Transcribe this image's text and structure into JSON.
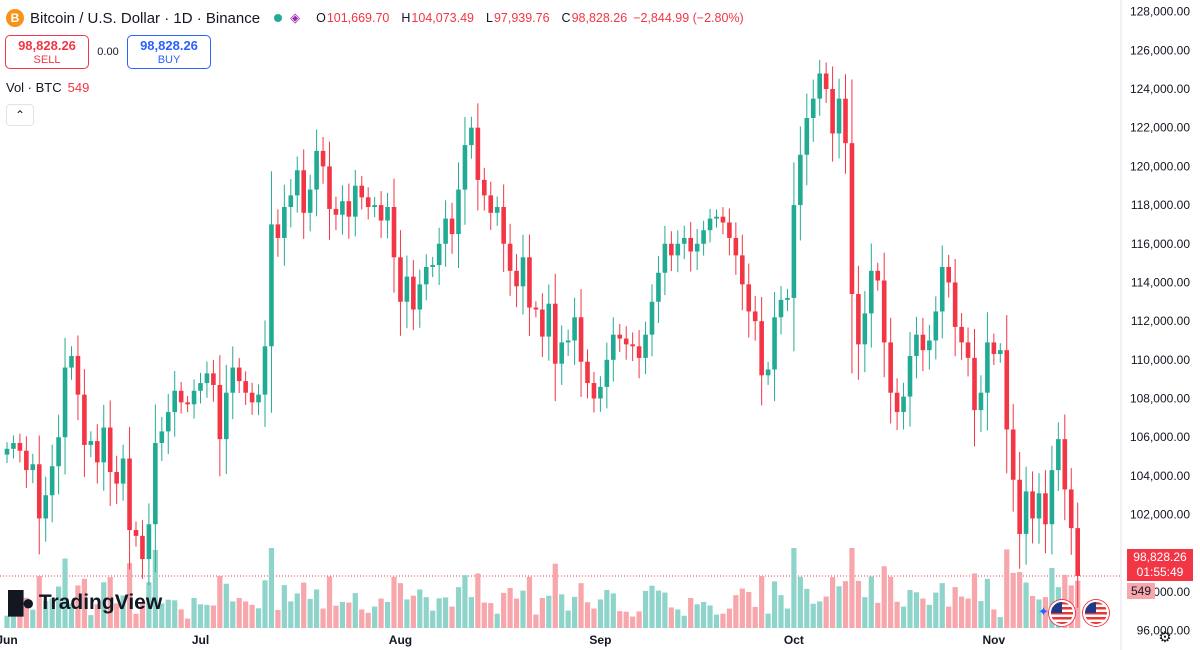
{
  "header": {
    "symbol_icon": "B",
    "title": "Bitcoin / U.S. Dollar · 1D · Binance",
    "open_label": "O",
    "open": "101,669.70",
    "high_label": "H",
    "high": "104,073.49",
    "low_label": "L",
    "low": "97,939.76",
    "close_label": "C",
    "close": "98,828.26",
    "change": "−2,844.99 (−2.80%)"
  },
  "trade": {
    "sell_price": "98,828.26",
    "sell_label": "SELL",
    "spread": "0.00",
    "buy_price": "98,828.26",
    "buy_label": "BUY"
  },
  "volume_legend": {
    "label": "Vol · BTC",
    "value": "549"
  },
  "logo": {
    "text": "TradingView"
  },
  "price_tag": {
    "price": "98,828.26",
    "countdown": "01:55:49"
  },
  "volume_tag": "549",
  "icons": {
    "symbol": "bitcoin-icon",
    "live": "live-dot-icon",
    "indicator": "indicator-share-icon",
    "collapse": "chevron-up-icon",
    "flag": "us-flag-icon",
    "settings": "gear-icon"
  },
  "colors": {
    "up": "#22ab94",
    "down": "#f23645",
    "up_volume": "#8fd4ca",
    "down_volume": "#f7a6ac",
    "price_line": "#f23645"
  },
  "chart_data": {
    "type": "candlestick",
    "title": "Bitcoin / U.S. Dollar · 1D · Binance",
    "ylim": [
      95000,
      128600
    ],
    "y_ticks": [
      "96,000.00",
      "98,000.00",
      "100,000.00",
      "102,000.00",
      "104,000.00",
      "106,000.00",
      "108,000.00",
      "110,000.00",
      "112,000.00",
      "114,000.00",
      "116,000.00",
      "118,000.00",
      "120,000.00",
      "122,000.00",
      "124,000.00",
      "126,000.00",
      "128,000.00"
    ],
    "x_ticks": [
      {
        "label": "Jun",
        "index": 0
      },
      {
        "label": "Jul",
        "index": 30
      },
      {
        "label": "Aug",
        "index": 61
      },
      {
        "label": "Sep",
        "index": 92
      },
      {
        "label": "Oct",
        "index": 122
      },
      {
        "label": "Nov",
        "index": 153
      }
    ],
    "last_price": 98828.26,
    "close": [
      105400,
      105700,
      105300,
      104300,
      104600,
      101800,
      103000,
      104500,
      106000,
      109600,
      110200,
      108200,
      105600,
      105800,
      104700,
      106500,
      104200,
      103600,
      104900,
      101200,
      100900,
      99700,
      101500,
      105700,
      106300,
      107300,
      108400,
      107800,
      107700,
      108400,
      108800,
      109300,
      108700,
      105900,
      108300,
      109600,
      108900,
      108300,
      107800,
      108200,
      110700,
      117000,
      116300,
      117900,
      118500,
      119800,
      117600,
      118800,
      120800,
      120000,
      117800,
      117500,
      118200,
      117400,
      119000,
      118400,
      117900,
      118000,
      117200,
      117900,
      115300,
      113000,
      114300,
      112600,
      113900,
      114800,
      114900,
      116000,
      117300,
      116500,
      118800,
      121100,
      122000,
      119300,
      118500,
      117600,
      117900,
      116000,
      114600,
      113800,
      115300,
      112700,
      112600,
      111200,
      112900,
      109800,
      110900,
      111000,
      112200,
      109900,
      108800,
      108000,
      108600,
      110000,
      111300,
      111100,
      110800,
      110700,
      110100,
      111300,
      113000,
      114500,
      116000,
      115400,
      116000,
      116300,
      115600,
      116000,
      116700,
      117300,
      117400,
      117100,
      116300,
      115400,
      113900,
      112500,
      112000,
      109200,
      109500,
      112200,
      113100,
      113200,
      118000,
      120600,
      122500,
      123500,
      124800,
      124000,
      121700,
      123500,
      121200,
      113400,
      110800,
      112400,
      114600,
      114100,
      110900,
      108300,
      107300,
      108100,
      110200,
      111300,
      110500,
      111000,
      112500,
      114800,
      114000,
      111700,
      110900,
      110100,
      107400,
      108300,
      110900,
      110300,
      110500,
      106400,
      103800,
      101000,
      103200,
      101800,
      103100,
      101500,
      104300,
      105900,
      103300,
      101300,
      98828
    ]
  }
}
